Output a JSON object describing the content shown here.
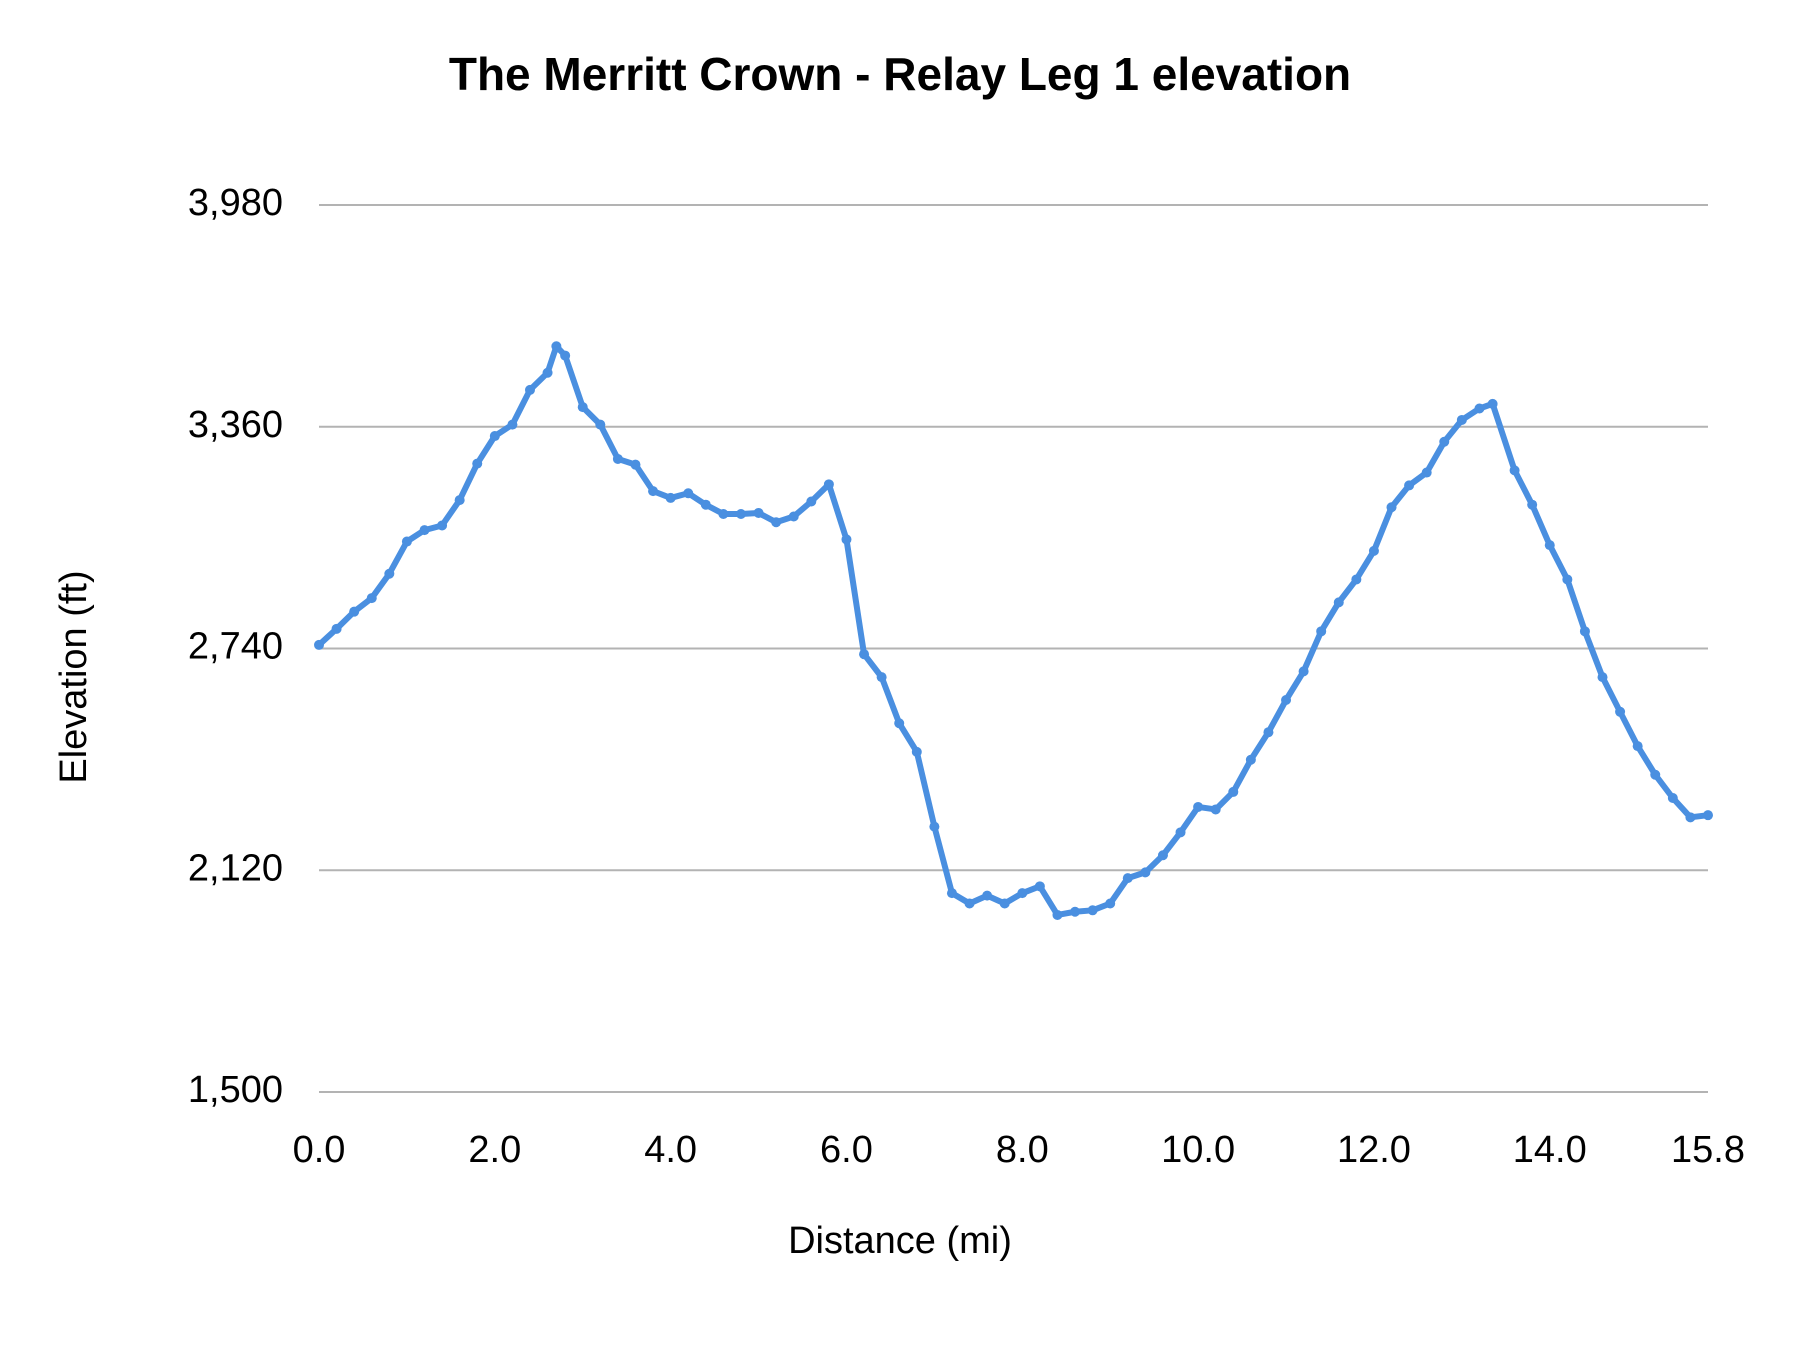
{
  "chart_data": {
    "type": "line",
    "title": "The Merritt Crown - Relay Leg 1 elevation",
    "x_label": "Distance (mi)",
    "y_label": "Elevation (ft)",
    "x": [
      0.0,
      0.2,
      0.4,
      0.6,
      0.8,
      1.0,
      1.2,
      1.4,
      1.6,
      1.8,
      2.0,
      2.2,
      2.4,
      2.6,
      2.7,
      2.8,
      3.0,
      3.2,
      3.4,
      3.6,
      3.8,
      4.0,
      4.2,
      4.4,
      4.6,
      4.8,
      5.0,
      5.2,
      5.4,
      5.6,
      5.8,
      6.0,
      6.2,
      6.4,
      6.6,
      6.8,
      7.0,
      7.2,
      7.4,
      7.6,
      7.8,
      8.0,
      8.2,
      8.4,
      8.6,
      8.8,
      9.0,
      9.2,
      9.4,
      9.6,
      9.8,
      10.0,
      10.2,
      10.4,
      10.6,
      10.8,
      11.0,
      11.2,
      11.4,
      11.6,
      11.8,
      12.0,
      12.2,
      12.4,
      12.6,
      12.8,
      13.0,
      13.2,
      13.35,
      13.6,
      13.8,
      14.0,
      14.2,
      14.4,
      14.6,
      14.8,
      15.0,
      15.2,
      15.4,
      15.6,
      15.8
    ],
    "series": [
      {
        "name": "Elevation",
        "color": "#4a8fe0",
        "values": [
          2750,
          2795,
          2843,
          2881,
          2949,
          3039,
          3071,
          3084,
          3155,
          3257,
          3334,
          3366,
          3463,
          3511,
          3585,
          3559,
          3415,
          3366,
          3270,
          3254,
          3180,
          3161,
          3174,
          3142,
          3116,
          3116,
          3119,
          3093,
          3109,
          3151,
          3199,
          3045,
          2724,
          2660,
          2531,
          2451,
          2242,
          2056,
          2027,
          2049,
          2027,
          2056,
          2075,
          1995,
          2004,
          2008,
          2027,
          2098,
          2114,
          2162,
          2226,
          2297,
          2290,
          2339,
          2429,
          2506,
          2596,
          2676,
          2788,
          2869,
          2933,
          3013,
          3135,
          3196,
          3232,
          3318,
          3379,
          3411,
          3424,
          3238,
          3142,
          3029,
          2933,
          2788,
          2660,
          2563,
          2467,
          2387,
          2322,
          2268,
          2274
        ]
      }
    ],
    "xlim": [
      0,
      15.8
    ],
    "xticks": [
      {
        "value": 0,
        "label": "0.0"
      },
      {
        "value": 2,
        "label": "2.0"
      },
      {
        "value": 4,
        "label": "4.0"
      },
      {
        "value": 6,
        "label": "6.0"
      },
      {
        "value": 8,
        "label": "8.0"
      },
      {
        "value": 10,
        "label": "10.0"
      },
      {
        "value": 12,
        "label": "12.0"
      },
      {
        "value": 14,
        "label": "14.0"
      },
      {
        "value": 15.8,
        "label": "15.8"
      }
    ],
    "ylim": [
      1500,
      3980
    ],
    "yticks": [
      {
        "value": 1500,
        "label": "1,500"
      },
      {
        "value": 2120,
        "label": "2,120"
      },
      {
        "value": 2740,
        "label": "2,740"
      },
      {
        "value": 3360,
        "label": "3,360"
      },
      {
        "value": 3980,
        "label": "3,980"
      }
    ],
    "grid": true
  }
}
